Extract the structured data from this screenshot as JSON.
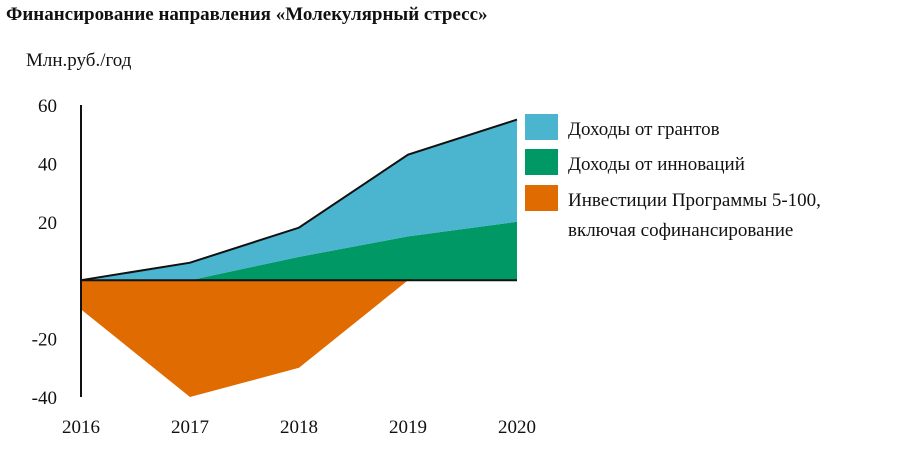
{
  "chart_data": {
    "type": "area",
    "title": "Финансирование направления «Молекулярный стресс»",
    "ylabel": "Млн.руб./год",
    "xlabel": "",
    "x": [
      "2016",
      "2017",
      "2018",
      "2019",
      "2020"
    ],
    "ylim": [
      -40,
      60
    ],
    "yticks": [
      "60",
      "40",
      "20",
      "-20",
      "-40"
    ],
    "ytick_values": [
      60,
      40,
      20,
      -20,
      -40
    ],
    "grid": false,
    "legend_position": "right",
    "series": [
      {
        "name": "Доходы от грантов",
        "color": "#4bb4cf",
        "values": [
          0,
          6,
          10,
          28,
          35
        ]
      },
      {
        "name": "Доходы от инноваций",
        "color": "#009966",
        "values": [
          0,
          0,
          8,
          15,
          20
        ]
      },
      {
        "name": "Инвестиции Программы 5-100,",
        "name_line2": "включая софинансирование",
        "color": "#e06b00",
        "values": [
          -10,
          -40,
          -30,
          0,
          0
        ]
      }
    ]
  }
}
